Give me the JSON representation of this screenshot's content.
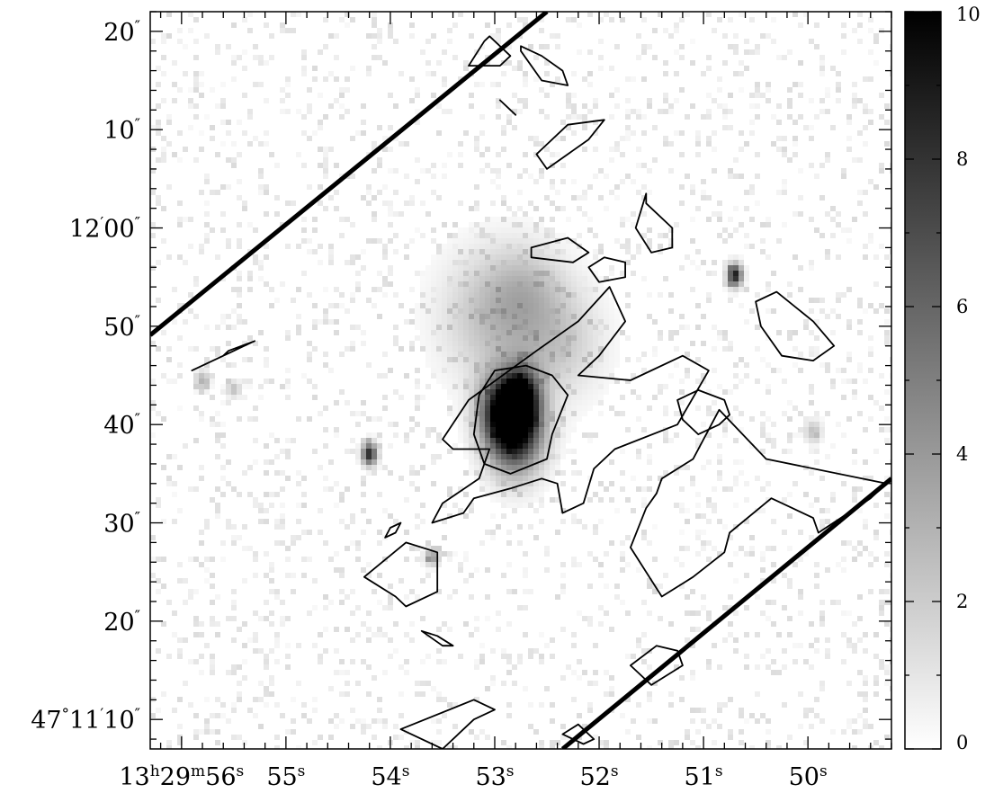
{
  "chart_data": {
    "type": "heatmap",
    "title": "",
    "xlabel": "",
    "ylabel": "",
    "axes": {
      "x": {
        "unit": "RA",
        "range_s": [
          56.3,
          49.2
        ],
        "ticks": [
          {
            "value": 56,
            "parts": [
              {
                "t": "13"
              },
              {
                "t": "h",
                "sup": true
              },
              {
                "t": "29"
              },
              {
                "t": "m",
                "sup": true
              },
              {
                "t": "56"
              },
              {
                "t": "s",
                "sup": true
              }
            ]
          },
          {
            "value": 55,
            "parts": [
              {
                "t": "55"
              },
              {
                "t": "s",
                "sup": true
              }
            ]
          },
          {
            "value": 54,
            "parts": [
              {
                "t": "54"
              },
              {
                "t": "s",
                "sup": true
              }
            ]
          },
          {
            "value": 53,
            "parts": [
              {
                "t": "53"
              },
              {
                "t": "s",
                "sup": true
              }
            ]
          },
          {
            "value": 52,
            "parts": [
              {
                "t": "52"
              },
              {
                "t": "s",
                "sup": true
              }
            ]
          },
          {
            "value": 51,
            "parts": [
              {
                "t": "51"
              },
              {
                "t": "s",
                "sup": true
              }
            ]
          },
          {
            "value": 50,
            "parts": [
              {
                "t": "50"
              },
              {
                "t": "s",
                "sup": true
              }
            ]
          }
        ]
      },
      "y": {
        "unit": "Dec",
        "range_arcsec": [
          7,
          82
        ],
        "ticks": [
          {
            "value": 10,
            "parts": [
              {
                "t": "47"
              },
              {
                "t": "°",
                "sup": true
              },
              {
                "t": "11"
              },
              {
                "t": "′",
                "sup": true
              },
              {
                "t": "10"
              },
              {
                "t": "″",
                "sup": true
              }
            ]
          },
          {
            "value": 20,
            "parts": [
              {
                "t": "20"
              },
              {
                "t": "″",
                "sup": true
              }
            ]
          },
          {
            "value": 30,
            "parts": [
              {
                "t": "30"
              },
              {
                "t": "″",
                "sup": true
              }
            ]
          },
          {
            "value": 40,
            "parts": [
              {
                "t": "40"
              },
              {
                "t": "″",
                "sup": true
              }
            ]
          },
          {
            "value": 50,
            "parts": [
              {
                "t": "50"
              },
              {
                "t": "″",
                "sup": true
              }
            ]
          },
          {
            "value": 60,
            "parts": [
              {
                "t": "12"
              },
              {
                "t": "′",
                "sup": true
              },
              {
                "t": "00"
              },
              {
                "t": "″",
                "sup": true
              }
            ]
          },
          {
            "value": 70,
            "parts": [
              {
                "t": "10"
              },
              {
                "t": "″",
                "sup": true
              }
            ]
          },
          {
            "value": 80,
            "parts": [
              {
                "t": "20"
              },
              {
                "t": "″",
                "sup": true
              }
            ]
          }
        ]
      }
    },
    "colorbar": {
      "min": 0,
      "max": 10,
      "ticks": [
        0,
        2,
        4,
        6,
        8,
        10
      ],
      "colormap": "white-to-black",
      "tick_labels": [
        "0",
        "2",
        "4",
        "6",
        "8",
        "10"
      ]
    },
    "sources": [
      {
        "ra_s": 52.8,
        "dec": 39.5,
        "peak": 10,
        "sigma_ra": 0.18,
        "sigma_dec": 3.0
      },
      {
        "ra_s": 52.75,
        "dec": 42.8,
        "peak": 8,
        "sigma_ra": 0.12,
        "sigma_dec": 2.0
      },
      {
        "ra_s": 52.95,
        "dec": 41.5,
        "peak": 6,
        "sigma_ra": 0.15,
        "sigma_dec": 2.5
      },
      {
        "ra_s": 53.0,
        "dec": 51.0,
        "peak": 2.5,
        "sigma_ra": 0.35,
        "sigma_dec": 4.5
      },
      {
        "ra_s": 52.4,
        "dec": 48.5,
        "peak": 2.0,
        "sigma_ra": 0.3,
        "sigma_dec": 4.0
      },
      {
        "ra_s": 52.7,
        "dec": 54.0,
        "peak": 1.5,
        "sigma_ra": 0.25,
        "sigma_dec": 3.0
      },
      {
        "ra_s": 50.7,
        "dec": 55.2,
        "peak": 9,
        "sigma_ra": 0.05,
        "sigma_dec": 0.8
      },
      {
        "ra_s": 54.2,
        "dec": 37.0,
        "peak": 8.5,
        "sigma_ra": 0.05,
        "sigma_dec": 0.8
      },
      {
        "ra_s": 55.8,
        "dec": 44.5,
        "peak": 3,
        "sigma_ra": 0.05,
        "sigma_dec": 0.7
      },
      {
        "ra_s": 55.5,
        "dec": 43.6,
        "peak": 2.5,
        "sigma_ra": 0.05,
        "sigma_dec": 0.6
      },
      {
        "ra_s": 53.6,
        "dec": 26.5,
        "peak": 4,
        "sigma_ra": 0.05,
        "sigma_dec": 0.6
      },
      {
        "ra_s": 49.95,
        "dec": 39.3,
        "peak": 2.5,
        "sigma_ra": 0.06,
        "sigma_dec": 0.8
      }
    ],
    "field_edges": [
      [
        [
          56.3,
          49.1
        ],
        [
          52.5,
          82.0
        ]
      ],
      [
        [
          52.35,
          7.0
        ],
        [
          49.2,
          34.5
        ]
      ]
    ],
    "contours": [
      [
        [
          52.3,
          43
        ],
        [
          52.45,
          39
        ],
        [
          52.5,
          36.5
        ],
        [
          52.85,
          35
        ],
        [
          53.1,
          36
        ],
        [
          53.2,
          39
        ],
        [
          53.15,
          43
        ],
        [
          53.0,
          45.5
        ],
        [
          52.7,
          46
        ],
        [
          52.45,
          45
        ]
      ],
      [
        [
          53.5,
          38.5
        ],
        [
          53.25,
          42.5
        ],
        [
          52.6,
          47.5
        ],
        [
          52.2,
          50.5
        ],
        [
          51.9,
          54
        ],
        [
          51.75,
          50.5
        ],
        [
          52.0,
          47
        ],
        [
          52.2,
          45
        ],
        [
          51.7,
          44.5
        ],
        [
          51.2,
          47
        ],
        [
          50.95,
          45.5
        ],
        [
          51.25,
          40
        ],
        [
          51.85,
          37.5
        ],
        [
          52.05,
          35.5
        ],
        [
          52.15,
          32
        ],
        [
          52.35,
          31
        ],
        [
          52.4,
          34
        ],
        [
          52.55,
          34.5
        ],
        [
          52.85,
          33.5
        ],
        [
          53.2,
          32.5
        ],
        [
          53.3,
          31
        ],
        [
          53.6,
          30
        ],
        [
          53.5,
          32
        ],
        [
          53.15,
          34.5
        ],
        [
          53.05,
          37.5
        ],
        [
          53.4,
          37.5
        ]
      ],
      [
        [
          51.4,
          34.5
        ],
        [
          51.1,
          36.5
        ],
        [
          50.85,
          41.5
        ],
        [
          50.4,
          36.5
        ],
        [
          49.25,
          34
        ],
        [
          49.4,
          32.5
        ],
        [
          49.9,
          29
        ],
        [
          49.95,
          30.5
        ],
        [
          50.15,
          31.5
        ],
        [
          50.35,
          32.5
        ],
        [
          50.75,
          29
        ],
        [
          50.8,
          27
        ],
        [
          51.1,
          24.5
        ],
        [
          51.4,
          22.5
        ],
        [
          51.7,
          27.5
        ],
        [
          51.55,
          31.5
        ],
        [
          51.45,
          33
        ]
      ],
      [
        [
          50.3,
          53.5
        ],
        [
          49.95,
          50.5
        ],
        [
          49.75,
          48
        ],
        [
          49.95,
          46.5
        ],
        [
          50.25,
          47
        ],
        [
          50.45,
          50
        ],
        [
          50.5,
          52.5
        ]
      ],
      [
        [
          50.85,
          40
        ],
        [
          51.05,
          39
        ],
        [
          51.2,
          40.5
        ],
        [
          51.25,
          42.5
        ],
        [
          51.05,
          43.5
        ],
        [
          50.8,
          42.5
        ],
        [
          50.75,
          41
        ]
      ],
      [
        [
          51.55,
          62.5
        ],
        [
          51.3,
          60
        ],
        [
          51.3,
          58
        ],
        [
          51.5,
          57.5
        ],
        [
          51.65,
          60
        ],
        [
          51.55,
          63.5
        ]
      ],
      [
        [
          52.5,
          66
        ],
        [
          52.1,
          69
        ],
        [
          51.95,
          71
        ],
        [
          52.3,
          70.5
        ],
        [
          52.6,
          67.5
        ]
      ],
      [
        [
          52.65,
          58
        ],
        [
          52.3,
          59
        ],
        [
          52.1,
          57.5
        ],
        [
          52.25,
          56.5
        ],
        [
          52.65,
          57
        ]
      ],
      [
        [
          52.0,
          54.5
        ],
        [
          51.75,
          55
        ],
        [
          51.75,
          56.5
        ],
        [
          51.95,
          57
        ],
        [
          52.1,
          56
        ]
      ],
      [
        [
          52.75,
          78
        ],
        [
          52.55,
          75
        ],
        [
          52.3,
          74.5
        ],
        [
          52.35,
          76
        ],
        [
          52.55,
          77.5
        ],
        [
          52.75,
          78.5
        ]
      ],
      [
        [
          53.1,
          79
        ],
        [
          53.25,
          76.5
        ],
        [
          52.95,
          76.5
        ],
        [
          52.85,
          77.5
        ],
        [
          53.05,
          79.5
        ]
      ],
      [
        [
          55.6,
          47
        ],
        [
          55.9,
          45.5
        ],
        [
          55.4,
          48
        ],
        [
          55.3,
          48.5
        ],
        [
          55.55,
          47.5
        ]
      ],
      [
        [
          53.95,
          22.5
        ],
        [
          54.25,
          24.5
        ],
        [
          53.85,
          28
        ],
        [
          53.55,
          27
        ],
        [
          53.55,
          23
        ],
        [
          53.85,
          21.5
        ]
      ],
      [
        [
          53.5,
          17.5
        ],
        [
          53.7,
          19
        ],
        [
          53.55,
          18.5
        ],
        [
          53.4,
          17.5
        ]
      ],
      [
        [
          51.2,
          15.5
        ],
        [
          51.5,
          13.5
        ],
        [
          51.7,
          15.5
        ],
        [
          51.45,
          17.5
        ],
        [
          51.25,
          17
        ]
      ],
      [
        [
          52.15,
          7.5
        ],
        [
          52.35,
          8.5
        ],
        [
          52.2,
          9.5
        ],
        [
          52.05,
          8
        ]
      ],
      [
        [
          53.5,
          7
        ],
        [
          53.9,
          9
        ],
        [
          53.2,
          12
        ],
        [
          53.0,
          11
        ],
        [
          53.2,
          10
        ]
      ],
      [
        [
          52.85,
          72
        ],
        [
          52.95,
          73
        ],
        [
          52.8,
          71.5
        ]
      ],
      [
        [
          53.9,
          30
        ],
        [
          54.0,
          29.5
        ],
        [
          54.05,
          28.5
        ],
        [
          53.95,
          29
        ]
      ]
    ]
  }
}
